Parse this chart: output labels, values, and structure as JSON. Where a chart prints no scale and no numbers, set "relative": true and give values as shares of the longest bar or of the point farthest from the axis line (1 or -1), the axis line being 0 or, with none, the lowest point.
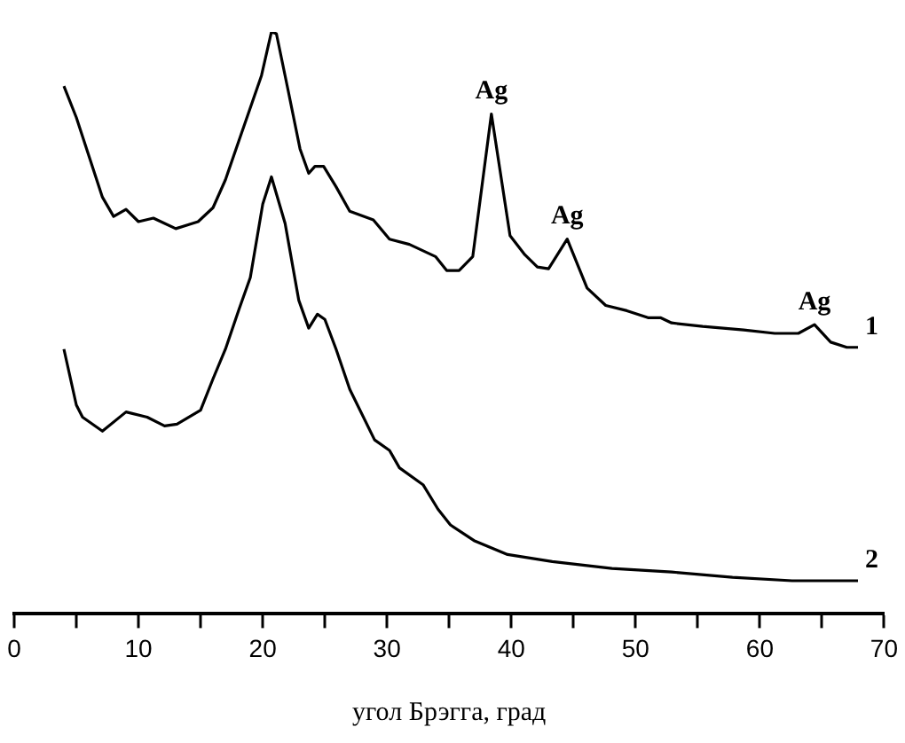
{
  "chart_data": {
    "type": "line",
    "xlabel": "угол Брэгга, град",
    "relative": true,
    "marker": "none",
    "grid": false,
    "legend": false,
    "xlim": [
      0,
      70
    ],
    "xticks": [
      0,
      {
        "value": 5,
        "label": null
      },
      10,
      {
        "value": 15,
        "label": null
      },
      20,
      {
        "value": 25,
        "label": null
      },
      30,
      {
        "value": 35,
        "label": null
      },
      40,
      {
        "value": 45,
        "label": null
      },
      50,
      {
        "value": 55,
        "label": null
      },
      60,
      {
        "value": 65,
        "label": null
      },
      70
    ],
    "series": [
      {
        "name": "1",
        "color": "#000000",
        "x": [
          4.0,
          5.0,
          7.1,
          8.0,
          9.0,
          10.0,
          11.2,
          13.0,
          14.8,
          16.0,
          17.0,
          18.1,
          19.9,
          20.7,
          21.1,
          22.0,
          23.0,
          23.7,
          24.2,
          24.9,
          25.9,
          27.0,
          28.9,
          30.2,
          31.8,
          33.9,
          34.8,
          35.8,
          36.9,
          38.4,
          39.9,
          41.1,
          42.1,
          43.0,
          44.5,
          46.1,
          47.6,
          49.3,
          51.0,
          52.0,
          52.9,
          55.4,
          58.7,
          61.2,
          63.1,
          64.4,
          65.7,
          67.0,
          67.9
        ],
        "values": [
          0.907,
          0.853,
          0.716,
          0.683,
          0.695,
          0.674,
          0.68,
          0.662,
          0.674,
          0.698,
          0.746,
          0.814,
          0.925,
          1.0,
          0.997,
          0.904,
          0.799,
          0.757,
          0.769,
          0.769,
          0.734,
          0.692,
          0.677,
          0.644,
          0.635,
          0.614,
          0.59,
          0.59,
          0.614,
          0.859,
          0.65,
          0.617,
          0.596,
          0.593,
          0.644,
          0.56,
          0.53,
          0.521,
          0.509,
          0.509,
          0.5,
          0.494,
          0.488,
          0.482,
          0.482,
          0.497,
          0.467,
          0.458,
          0.458
        ]
      },
      {
        "name": "2",
        "color": "#000000",
        "x": [
          4.0,
          5.0,
          5.5,
          7.1,
          9.0,
          10.7,
          12.1,
          13.1,
          15.0,
          16.0,
          17.0,
          18.1,
          19.0,
          20.0,
          20.7,
          21.8,
          22.9,
          23.7,
          24.4,
          25.0,
          25.9,
          27.0,
          29.0,
          30.2,
          31.0,
          32.9,
          34.1,
          35.1,
          37.0,
          39.7,
          43.3,
          48.1,
          52.9,
          57.8,
          62.6,
          67.9
        ],
        "values": [
          0.455,
          0.359,
          0.338,
          0.314,
          0.347,
          0.338,
          0.323,
          0.326,
          0.35,
          0.404,
          0.455,
          0.524,
          0.578,
          0.704,
          0.751,
          0.671,
          0.539,
          0.491,
          0.515,
          0.506,
          0.455,
          0.386,
          0.299,
          0.281,
          0.251,
          0.222,
          0.18,
          0.153,
          0.126,
          0.102,
          0.09,
          0.078,
          0.072,
          0.063,
          0.057,
          0.057
        ]
      }
    ],
    "annotations": [
      {
        "text": "Ag",
        "x": 38.4,
        "y": 0.859
      },
      {
        "text": "Ag",
        "x": 44.5,
        "y": 0.644
      },
      {
        "text": "Ag",
        "x": 64.4,
        "y": 0.497
      }
    ]
  }
}
